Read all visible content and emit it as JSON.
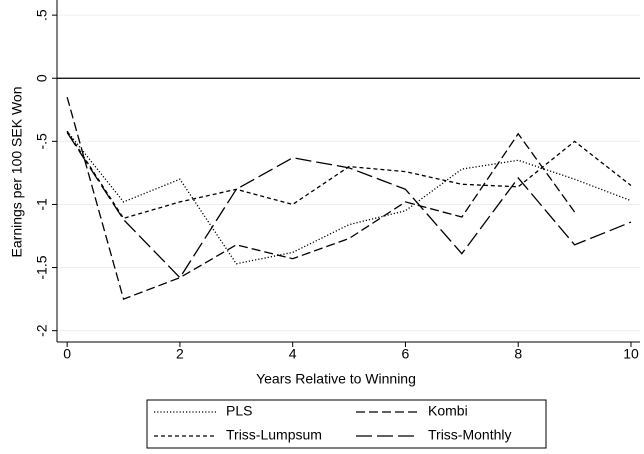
{
  "chart_data": {
    "type": "line",
    "y_label": "Earnings per 100 SEK Won",
    "x_label": "Years Relative to Winning",
    "x": [
      0,
      1,
      2,
      3,
      4,
      5,
      6,
      7,
      8,
      9,
      10
    ],
    "xlim": [
      -0.18,
      10.16
    ],
    "xticks": [
      0,
      2,
      4,
      6,
      8,
      10
    ],
    "ylim": [
      -2.09,
      0.62
    ],
    "yticks": [
      {
        "value": 0.5,
        "label": ".5"
      },
      0,
      {
        "value": -0.5,
        "label": "-.5"
      },
      -1,
      -1.5,
      -2
    ],
    "grid": true,
    "yline": 0,
    "legend": "bottom",
    "series": [
      {
        "name": "PLS",
        "color": "#000000",
        "style": "dotted",
        "values": [
          -0.42,
          -0.98,
          -0.8,
          -1.47,
          -1.38,
          -1.16,
          -1.05,
          -0.72,
          -0.65,
          -0.8,
          -0.97
        ]
      },
      {
        "name": "Kombi",
        "color": "#000000",
        "style": "dashed",
        "values": [
          -0.15,
          -1.75,
          -1.58,
          -1.32,
          -1.43,
          -1.27,
          -0.98,
          -1.1,
          -0.44,
          -1.06,
          null
        ]
      },
      {
        "name": "Triss-Lumpsum",
        "color": "#000000",
        "style": "shortdash",
        "values": [
          -0.42,
          -1.11,
          -0.98,
          -0.88,
          -1.0,
          -0.7,
          -0.74,
          -0.84,
          -0.86,
          -0.5,
          -0.85
        ]
      },
      {
        "name": "Triss-Monthly",
        "color": "#000000",
        "style": "longdash",
        "values": [
          -0.43,
          -1.12,
          -1.58,
          -0.88,
          -0.63,
          -0.71,
          -0.88,
          -1.39,
          -0.79,
          -1.32,
          -1.14
        ]
      }
    ]
  }
}
